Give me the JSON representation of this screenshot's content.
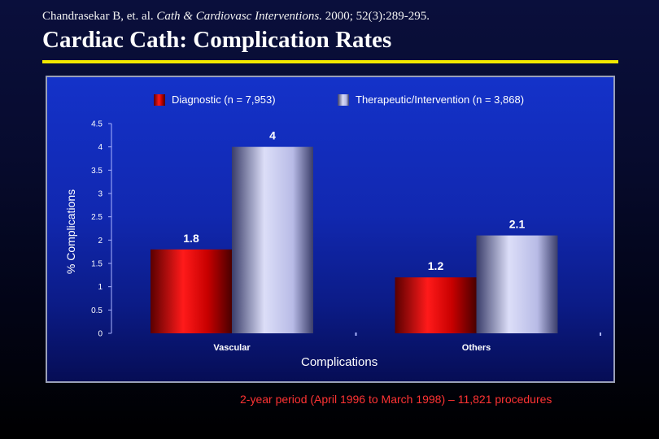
{
  "citation": {
    "authors": "Chandrasekar B, et. al.",
    "journal": "Cath & Cardiovasc Interventions.",
    "details": "2000; 52(3):289-295."
  },
  "title": "Cardiac Cath:  Complication Rates",
  "footnote": "2-year period (April 1996 to March 1998) – 11,821 procedures",
  "colors": {
    "title_rule": "#f3e800",
    "diagnostic": "#e00000",
    "therapeutic": "#c8cbf2",
    "plot_background": "#1330c0",
    "footnote": "#ff3333"
  },
  "chart_data": {
    "type": "bar",
    "categories": [
      "Vascular",
      "Others"
    ],
    "series": [
      {
        "name": "Diagnostic (n = 7,953)",
        "values": [
          1.8,
          1.2
        ]
      },
      {
        "name": "Therapeutic/Intervention (n = 3,868)",
        "values": [
          4,
          2.1
        ]
      }
    ],
    "data_labels": [
      [
        "1.8",
        "1.2"
      ],
      [
        "4",
        "2.1"
      ]
    ],
    "xlabel": "Complications",
    "ylabel": "% Complications",
    "ylim": [
      0,
      4.5
    ],
    "yticks": [
      "0",
      "0.5",
      "1",
      "1.5",
      "2",
      "2.5",
      "3",
      "3.5",
      "4",
      "4.5"
    ],
    "grid": false,
    "legend_position": "top"
  }
}
